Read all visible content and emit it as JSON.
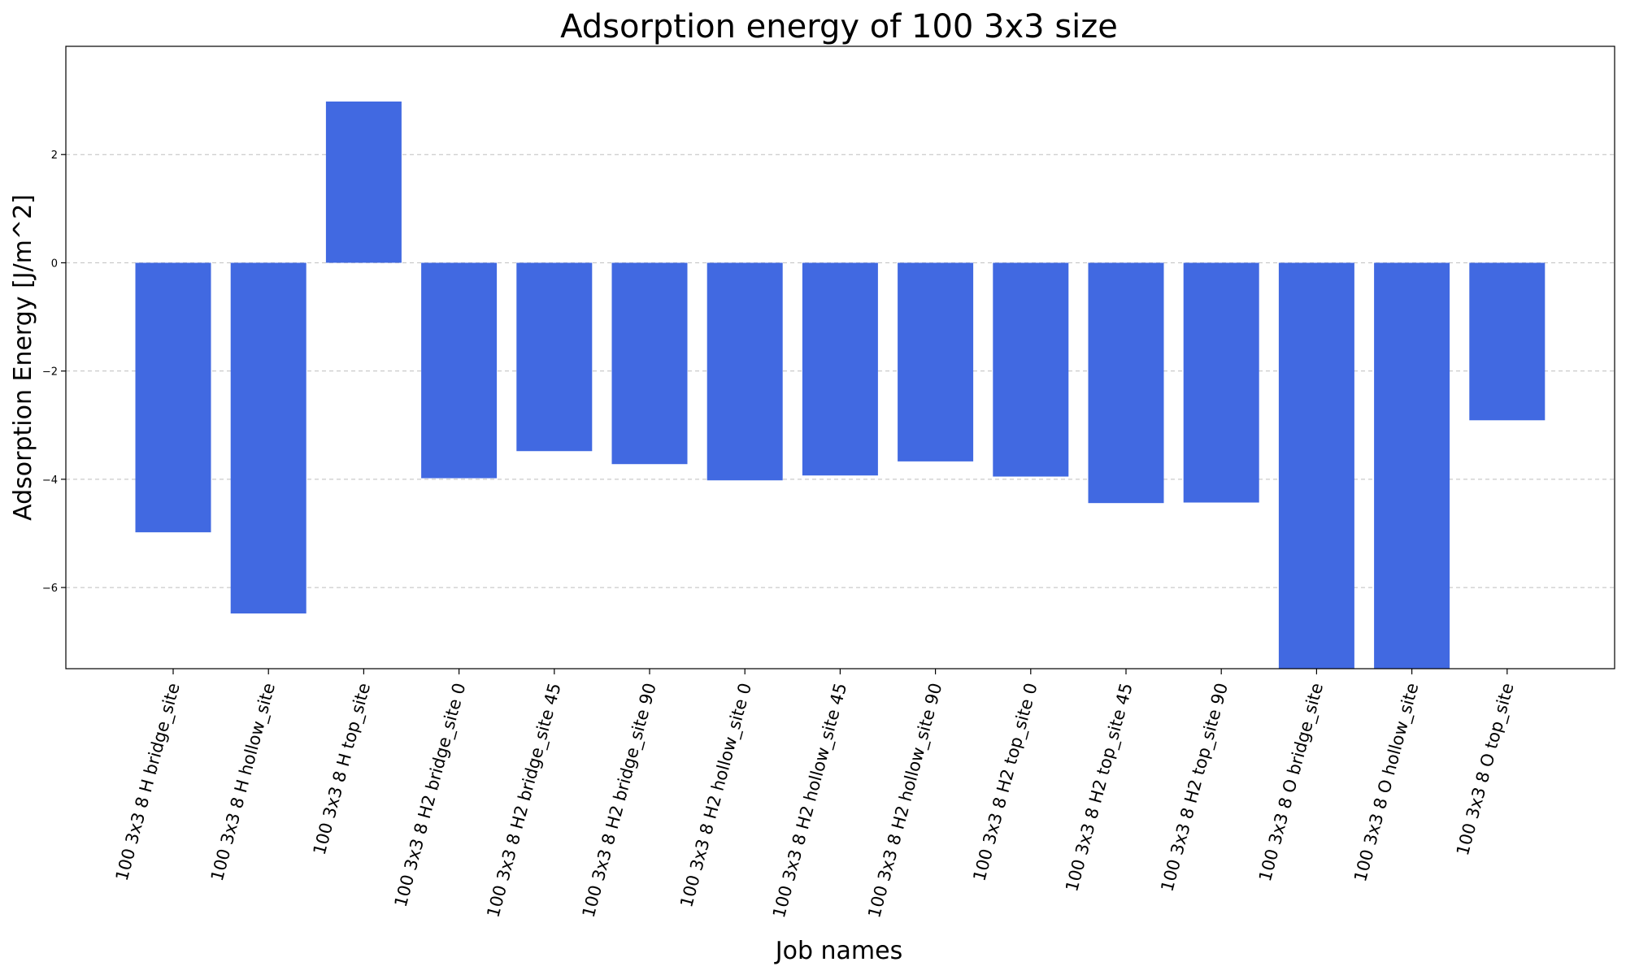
{
  "chart_data": {
    "type": "bar",
    "title": "Adsorption energy of 100 3x3 size",
    "xlabel": "Job names",
    "ylabel": "Adsorption Energy [J/m^2]",
    "ylim": [
      -7.5,
      4.0
    ],
    "yticks": [
      2,
      0,
      -2,
      -4,
      -6
    ],
    "ytick_labels": [
      "2",
      "0",
      "−2",
      "−4",
      "−6"
    ],
    "grid": "y-dashed",
    "bar_color": "#4169E1",
    "categories": [
      "100 3x3 8 H bridge_site",
      "100 3x3 8 H hollow_site",
      "100 3x3 8 H top_site",
      "100 3x3 8 H2 bridge_site 0",
      "100 3x3 8 H2 bridge_site 45",
      "100 3x3 8 H2 bridge_site 90",
      "100 3x3 8 H2 hollow_site 0",
      "100 3x3 8 H2 hollow_site 45",
      "100 3x3 8 H2 hollow_site 90",
      "100 3x3 8 H2 top_site 0",
      "100 3x3 8 H2 top_site 45",
      "100 3x3 8 H2 top_site 90",
      "100 3x3 8 O bridge_site",
      "100 3x3 8 O hollow_site",
      "100 3x3 8 O top_site"
    ],
    "values": [
      -4.98,
      -6.48,
      2.98,
      -3.98,
      -3.48,
      -3.72,
      -4.02,
      -3.93,
      -3.67,
      -3.95,
      -4.44,
      -4.43,
      -7.6,
      -7.6,
      -2.91
    ]
  }
}
